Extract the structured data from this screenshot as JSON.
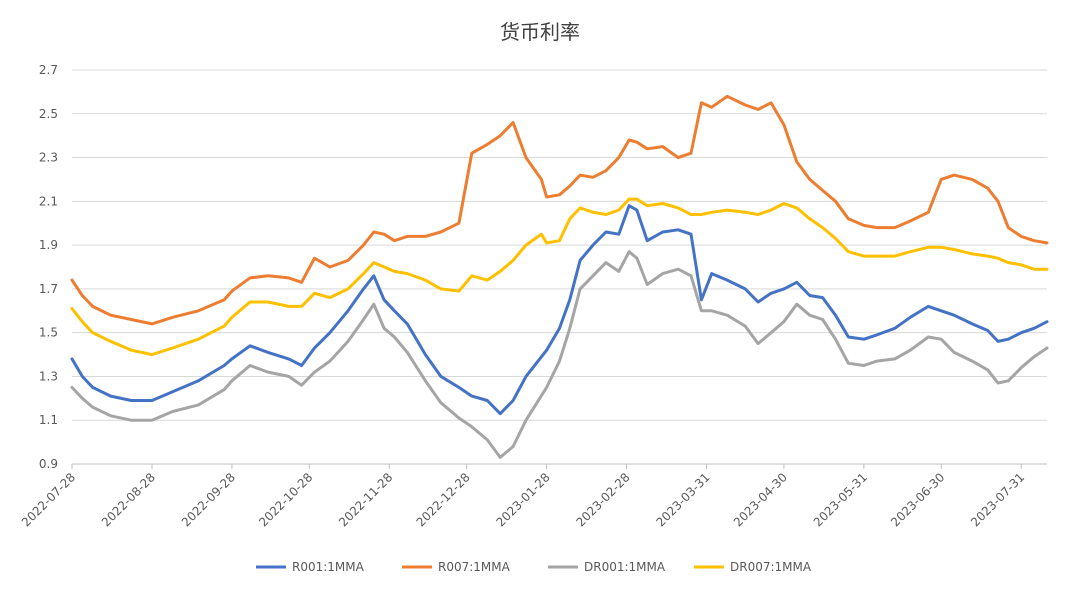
{
  "chart_data": {
    "type": "line",
    "title": "货币利率",
    "xlabel": "",
    "ylabel": "",
    "ylim": [
      0.9,
      2.7
    ],
    "yticks": [
      "0.9",
      "1.1",
      "1.3",
      "1.5",
      "1.7",
      "1.9",
      "2.1",
      "2.3",
      "2.5",
      "2.7"
    ],
    "xticks": [
      "2022-07-28",
      "2022-08-28",
      "2022-09-28",
      "2022-10-28",
      "2022-11-28",
      "2022-12-28",
      "2023-01-28",
      "2023-02-28",
      "2023-03-31",
      "2023-04-30",
      "2023-05-31",
      "2023-06-30",
      "2023-07-31"
    ],
    "x_range": [
      "2022-07-28",
      "2023-08-10"
    ],
    "grid": "horizontal",
    "legend_position": "bottom",
    "series": [
      {
        "name": "R001:1MMA",
        "color": "#4472C4",
        "points": [
          [
            "2022-07-28",
            1.38
          ],
          [
            "2022-08-01",
            1.3
          ],
          [
            "2022-08-05",
            1.25
          ],
          [
            "2022-08-12",
            1.21
          ],
          [
            "2022-08-20",
            1.19
          ],
          [
            "2022-08-28",
            1.19
          ],
          [
            "2022-09-05",
            1.23
          ],
          [
            "2022-09-15",
            1.28
          ],
          [
            "2022-09-25",
            1.35
          ],
          [
            "2022-09-28",
            1.38
          ],
          [
            "2022-10-05",
            1.44
          ],
          [
            "2022-10-12",
            1.41
          ],
          [
            "2022-10-20",
            1.38
          ],
          [
            "2022-10-25",
            1.35
          ],
          [
            "2022-10-30",
            1.43
          ],
          [
            "2022-11-05",
            1.5
          ],
          [
            "2022-11-12",
            1.6
          ],
          [
            "2022-11-18",
            1.7
          ],
          [
            "2022-11-22",
            1.76
          ],
          [
            "2022-11-26",
            1.65
          ],
          [
            "2022-11-30",
            1.6
          ],
          [
            "2022-12-05",
            1.54
          ],
          [
            "2022-12-12",
            1.4
          ],
          [
            "2022-12-18",
            1.3
          ],
          [
            "2022-12-25",
            1.25
          ],
          [
            "2022-12-30",
            1.21
          ],
          [
            "2023-01-05",
            1.19
          ],
          [
            "2023-01-10",
            1.13
          ],
          [
            "2023-01-15",
            1.19
          ],
          [
            "2023-01-20",
            1.3
          ],
          [
            "2023-01-28",
            1.42
          ],
          [
            "2023-02-02",
            1.52
          ],
          [
            "2023-02-06",
            1.65
          ],
          [
            "2023-02-10",
            1.83
          ],
          [
            "2023-02-15",
            1.9
          ],
          [
            "2023-02-20",
            1.96
          ],
          [
            "2023-02-25",
            1.95
          ],
          [
            "2023-03-01",
            2.08
          ],
          [
            "2023-03-04",
            2.06
          ],
          [
            "2023-03-08",
            1.92
          ],
          [
            "2023-03-14",
            1.96
          ],
          [
            "2023-03-20",
            1.97
          ],
          [
            "2023-03-25",
            1.95
          ],
          [
            "2023-03-29",
            1.65
          ],
          [
            "2023-04-02",
            1.77
          ],
          [
            "2023-04-08",
            1.74
          ],
          [
            "2023-04-15",
            1.7
          ],
          [
            "2023-04-20",
            1.64
          ],
          [
            "2023-04-25",
            1.68
          ],
          [
            "2023-04-30",
            1.7
          ],
          [
            "2023-05-05",
            1.73
          ],
          [
            "2023-05-10",
            1.67
          ],
          [
            "2023-05-15",
            1.66
          ],
          [
            "2023-05-20",
            1.58
          ],
          [
            "2023-05-25",
            1.48
          ],
          [
            "2023-05-31",
            1.47
          ],
          [
            "2023-06-05",
            1.49
          ],
          [
            "2023-06-12",
            1.52
          ],
          [
            "2023-06-18",
            1.57
          ],
          [
            "2023-06-25",
            1.62
          ],
          [
            "2023-06-30",
            1.6
          ],
          [
            "2023-07-05",
            1.58
          ],
          [
            "2023-07-12",
            1.54
          ],
          [
            "2023-07-18",
            1.51
          ],
          [
            "2023-07-22",
            1.46
          ],
          [
            "2023-07-26",
            1.47
          ],
          [
            "2023-07-31",
            1.5
          ],
          [
            "2023-08-05",
            1.52
          ],
          [
            "2023-08-10",
            1.55
          ]
        ]
      },
      {
        "name": "R007:1MMA",
        "color": "#ED7D31",
        "points": [
          [
            "2022-07-28",
            1.74
          ],
          [
            "2022-08-01",
            1.67
          ],
          [
            "2022-08-05",
            1.62
          ],
          [
            "2022-08-12",
            1.58
          ],
          [
            "2022-08-20",
            1.56
          ],
          [
            "2022-08-28",
            1.54
          ],
          [
            "2022-09-05",
            1.57
          ],
          [
            "2022-09-15",
            1.6
          ],
          [
            "2022-09-25",
            1.65
          ],
          [
            "2022-09-28",
            1.69
          ],
          [
            "2022-10-05",
            1.75
          ],
          [
            "2022-10-12",
            1.76
          ],
          [
            "2022-10-20",
            1.75
          ],
          [
            "2022-10-25",
            1.73
          ],
          [
            "2022-10-30",
            1.84
          ],
          [
            "2022-11-05",
            1.8
          ],
          [
            "2022-11-12",
            1.83
          ],
          [
            "2022-11-18",
            1.9
          ],
          [
            "2022-11-22",
            1.96
          ],
          [
            "2022-11-26",
            1.95
          ],
          [
            "2022-11-30",
            1.92
          ],
          [
            "2022-12-05",
            1.94
          ],
          [
            "2022-12-12",
            1.94
          ],
          [
            "2022-12-18",
            1.96
          ],
          [
            "2022-12-25",
            2.0
          ],
          [
            "2022-12-30",
            2.32
          ],
          [
            "2023-01-05",
            2.36
          ],
          [
            "2023-01-10",
            2.4
          ],
          [
            "2023-01-15",
            2.46
          ],
          [
            "2023-01-20",
            2.3
          ],
          [
            "2023-01-26",
            2.2
          ],
          [
            "2023-01-28",
            2.12
          ],
          [
            "2023-02-02",
            2.13
          ],
          [
            "2023-02-06",
            2.17
          ],
          [
            "2023-02-10",
            2.22
          ],
          [
            "2023-02-15",
            2.21
          ],
          [
            "2023-02-20",
            2.24
          ],
          [
            "2023-02-25",
            2.3
          ],
          [
            "2023-03-01",
            2.38
          ],
          [
            "2023-03-04",
            2.37
          ],
          [
            "2023-03-08",
            2.34
          ],
          [
            "2023-03-14",
            2.35
          ],
          [
            "2023-03-20",
            2.3
          ],
          [
            "2023-03-25",
            2.32
          ],
          [
            "2023-03-29",
            2.55
          ],
          [
            "2023-04-02",
            2.53
          ],
          [
            "2023-04-08",
            2.58
          ],
          [
            "2023-04-15",
            2.54
          ],
          [
            "2023-04-20",
            2.52
          ],
          [
            "2023-04-25",
            2.55
          ],
          [
            "2023-04-30",
            2.45
          ],
          [
            "2023-05-05",
            2.28
          ],
          [
            "2023-05-10",
            2.2
          ],
          [
            "2023-05-15",
            2.15
          ],
          [
            "2023-05-20",
            2.1
          ],
          [
            "2023-05-25",
            2.02
          ],
          [
            "2023-05-31",
            1.99
          ],
          [
            "2023-06-05",
            1.98
          ],
          [
            "2023-06-12",
            1.98
          ],
          [
            "2023-06-18",
            2.01
          ],
          [
            "2023-06-25",
            2.05
          ],
          [
            "2023-06-30",
            2.2
          ],
          [
            "2023-07-05",
            2.22
          ],
          [
            "2023-07-12",
            2.2
          ],
          [
            "2023-07-18",
            2.16
          ],
          [
            "2023-07-22",
            2.1
          ],
          [
            "2023-07-26",
            1.98
          ],
          [
            "2023-07-31",
            1.94
          ],
          [
            "2023-08-05",
            1.92
          ],
          [
            "2023-08-10",
            1.91
          ]
        ]
      },
      {
        "name": "DR001:1MMA",
        "color": "#A5A5A5",
        "points": [
          [
            "2022-07-28",
            1.25
          ],
          [
            "2022-08-01",
            1.2
          ],
          [
            "2022-08-05",
            1.16
          ],
          [
            "2022-08-12",
            1.12
          ],
          [
            "2022-08-20",
            1.1
          ],
          [
            "2022-08-28",
            1.1
          ],
          [
            "2022-09-05",
            1.14
          ],
          [
            "2022-09-15",
            1.17
          ],
          [
            "2022-09-25",
            1.24
          ],
          [
            "2022-09-28",
            1.28
          ],
          [
            "2022-10-05",
            1.35
          ],
          [
            "2022-10-12",
            1.32
          ],
          [
            "2022-10-20",
            1.3
          ],
          [
            "2022-10-25",
            1.26
          ],
          [
            "2022-10-30",
            1.32
          ],
          [
            "2022-11-05",
            1.37
          ],
          [
            "2022-11-12",
            1.46
          ],
          [
            "2022-11-18",
            1.56
          ],
          [
            "2022-11-22",
            1.63
          ],
          [
            "2022-11-26",
            1.52
          ],
          [
            "2022-11-30",
            1.48
          ],
          [
            "2022-12-05",
            1.41
          ],
          [
            "2022-12-12",
            1.28
          ],
          [
            "2022-12-18",
            1.18
          ],
          [
            "2022-12-25",
            1.11
          ],
          [
            "2022-12-30",
            1.07
          ],
          [
            "2023-01-05",
            1.01
          ],
          [
            "2023-01-10",
            0.93
          ],
          [
            "2023-01-15",
            0.98
          ],
          [
            "2023-01-20",
            1.1
          ],
          [
            "2023-01-28",
            1.25
          ],
          [
            "2023-02-02",
            1.37
          ],
          [
            "2023-02-06",
            1.52
          ],
          [
            "2023-02-10",
            1.7
          ],
          [
            "2023-02-15",
            1.76
          ],
          [
            "2023-02-20",
            1.82
          ],
          [
            "2023-02-25",
            1.78
          ],
          [
            "2023-03-01",
            1.87
          ],
          [
            "2023-03-04",
            1.84
          ],
          [
            "2023-03-08",
            1.72
          ],
          [
            "2023-03-14",
            1.77
          ],
          [
            "2023-03-20",
            1.79
          ],
          [
            "2023-03-25",
            1.76
          ],
          [
            "2023-03-29",
            1.6
          ],
          [
            "2023-04-02",
            1.6
          ],
          [
            "2023-04-08",
            1.58
          ],
          [
            "2023-04-15",
            1.53
          ],
          [
            "2023-04-20",
            1.45
          ],
          [
            "2023-04-25",
            1.5
          ],
          [
            "2023-04-30",
            1.55
          ],
          [
            "2023-05-05",
            1.63
          ],
          [
            "2023-05-10",
            1.58
          ],
          [
            "2023-05-15",
            1.56
          ],
          [
            "2023-05-20",
            1.47
          ],
          [
            "2023-05-25",
            1.36
          ],
          [
            "2023-05-31",
            1.35
          ],
          [
            "2023-06-05",
            1.37
          ],
          [
            "2023-06-12",
            1.38
          ],
          [
            "2023-06-18",
            1.42
          ],
          [
            "2023-06-25",
            1.48
          ],
          [
            "2023-06-30",
            1.47
          ],
          [
            "2023-07-05",
            1.41
          ],
          [
            "2023-07-12",
            1.37
          ],
          [
            "2023-07-18",
            1.33
          ],
          [
            "2023-07-22",
            1.27
          ],
          [
            "2023-07-26",
            1.28
          ],
          [
            "2023-07-31",
            1.34
          ],
          [
            "2023-08-05",
            1.39
          ],
          [
            "2023-08-10",
            1.43
          ]
        ]
      },
      {
        "name": "DR007:1MMA",
        "color": "#FFC000",
        "points": [
          [
            "2022-07-28",
            1.61
          ],
          [
            "2022-08-01",
            1.55
          ],
          [
            "2022-08-05",
            1.5
          ],
          [
            "2022-08-12",
            1.46
          ],
          [
            "2022-08-20",
            1.42
          ],
          [
            "2022-08-28",
            1.4
          ],
          [
            "2022-09-05",
            1.43
          ],
          [
            "2022-09-15",
            1.47
          ],
          [
            "2022-09-25",
            1.53
          ],
          [
            "2022-09-28",
            1.57
          ],
          [
            "2022-10-05",
            1.64
          ],
          [
            "2022-10-12",
            1.64
          ],
          [
            "2022-10-20",
            1.62
          ],
          [
            "2022-10-25",
            1.62
          ],
          [
            "2022-10-30",
            1.68
          ],
          [
            "2022-11-05",
            1.66
          ],
          [
            "2022-11-12",
            1.7
          ],
          [
            "2022-11-18",
            1.77
          ],
          [
            "2022-11-22",
            1.82
          ],
          [
            "2022-11-26",
            1.8
          ],
          [
            "2022-11-30",
            1.78
          ],
          [
            "2022-12-05",
            1.77
          ],
          [
            "2022-12-12",
            1.74
          ],
          [
            "2022-12-18",
            1.7
          ],
          [
            "2022-12-25",
            1.69
          ],
          [
            "2022-12-30",
            1.76
          ],
          [
            "2023-01-05",
            1.74
          ],
          [
            "2023-01-10",
            1.78
          ],
          [
            "2023-01-15",
            1.83
          ],
          [
            "2023-01-20",
            1.9
          ],
          [
            "2023-01-26",
            1.95
          ],
          [
            "2023-01-28",
            1.91
          ],
          [
            "2023-02-02",
            1.92
          ],
          [
            "2023-02-06",
            2.02
          ],
          [
            "2023-02-10",
            2.07
          ],
          [
            "2023-02-15",
            2.05
          ],
          [
            "2023-02-20",
            2.04
          ],
          [
            "2023-02-25",
            2.06
          ],
          [
            "2023-03-01",
            2.11
          ],
          [
            "2023-03-04",
            2.11
          ],
          [
            "2023-03-08",
            2.08
          ],
          [
            "2023-03-14",
            2.09
          ],
          [
            "2023-03-20",
            2.07
          ],
          [
            "2023-03-25",
            2.04
          ],
          [
            "2023-03-29",
            2.04
          ],
          [
            "2023-04-02",
            2.05
          ],
          [
            "2023-04-08",
            2.06
          ],
          [
            "2023-04-15",
            2.05
          ],
          [
            "2023-04-20",
            2.04
          ],
          [
            "2023-04-25",
            2.06
          ],
          [
            "2023-04-30",
            2.09
          ],
          [
            "2023-05-05",
            2.07
          ],
          [
            "2023-05-10",
            2.02
          ],
          [
            "2023-05-15",
            1.98
          ],
          [
            "2023-05-20",
            1.93
          ],
          [
            "2023-05-25",
            1.87
          ],
          [
            "2023-05-31",
            1.85
          ],
          [
            "2023-06-05",
            1.85
          ],
          [
            "2023-06-12",
            1.85
          ],
          [
            "2023-06-18",
            1.87
          ],
          [
            "2023-06-25",
            1.89
          ],
          [
            "2023-06-30",
            1.89
          ],
          [
            "2023-07-05",
            1.88
          ],
          [
            "2023-07-12",
            1.86
          ],
          [
            "2023-07-18",
            1.85
          ],
          [
            "2023-07-22",
            1.84
          ],
          [
            "2023-07-26",
            1.82
          ],
          [
            "2023-07-31",
            1.81
          ],
          [
            "2023-08-05",
            1.79
          ],
          [
            "2023-08-10",
            1.79
          ]
        ]
      }
    ]
  }
}
